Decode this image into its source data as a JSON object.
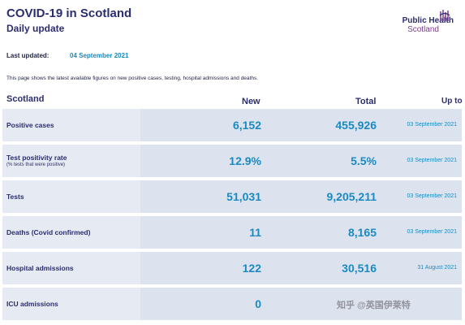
{
  "header": {
    "title": "COVID-19 in Scotland",
    "subtitle": "Daily update"
  },
  "logo": {
    "line1": "Public Health",
    "line2": "Scotland",
    "icon": "phs-logo-mark"
  },
  "last_updated": {
    "label": "Last updated:",
    "date": "04 September 2021"
  },
  "intro": "This page shows the latest available figures on new positive cases, testing, hospital admissions and deaths.",
  "table": {
    "headers": {
      "name": "Scotland",
      "new": "New",
      "total": "Total",
      "upto": "Up to"
    },
    "rows": [
      {
        "label": "Positive cases",
        "note": "",
        "new": "6,152",
        "total": "455,926",
        "date": "03 September 2021"
      },
      {
        "label": "Test positivity rate",
        "note": "(% tests that were positive)",
        "new": "12.9%",
        "total": "5.5%",
        "date": "03 September 2021"
      },
      {
        "label": "Tests",
        "note": "",
        "new": "51,031",
        "total": "9,205,211",
        "date": "03 September 2021"
      },
      {
        "label": "Deaths (Covid confirmed)",
        "note": "",
        "new": "11",
        "total": "8,165",
        "date": "03 September 2021"
      },
      {
        "label": "Hospital admissions",
        "note": "",
        "new": "122",
        "total": "30,516",
        "date": "31 August 2021"
      },
      {
        "label": "ICU admissions",
        "note": "",
        "new": "0",
        "total": "",
        "date": ""
      }
    ]
  },
  "watermark": "知乎 @英国伊莱特",
  "colors": {
    "navy": "#2b2d6e",
    "accent_blue": "#1a8ac0",
    "row_bg": "#dde3ee",
    "brand_purple": "#7e3a8f"
  }
}
